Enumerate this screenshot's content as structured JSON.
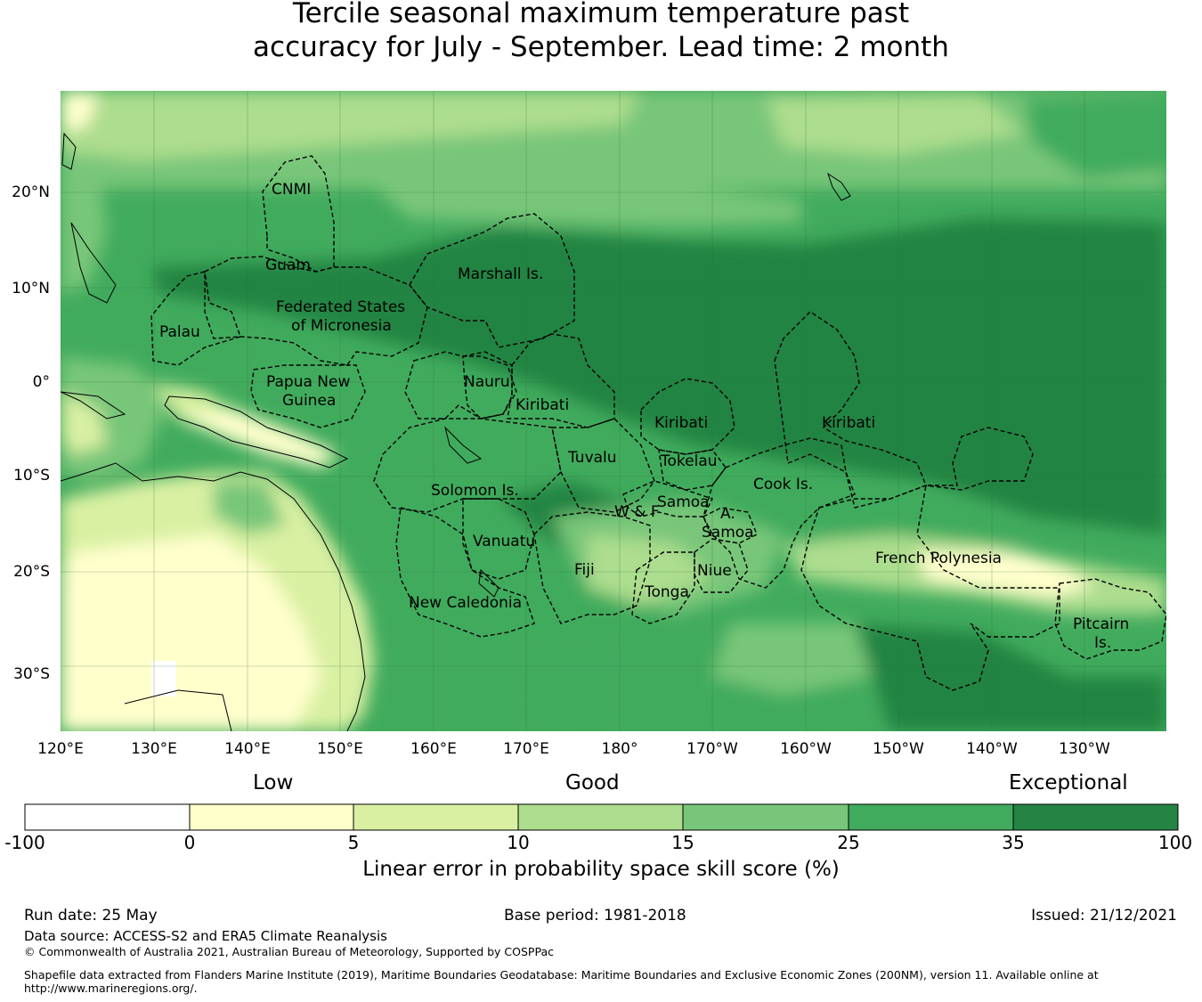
{
  "title": {
    "line1": "Tercile seasonal maximum temperature past",
    "line2": "accuracy for July - September. Lead time: 2 month"
  },
  "map": {
    "lat_labels": [
      "20°N",
      "10°N",
      "0°",
      "10°S",
      "20°S",
      "30°S"
    ],
    "lon_labels": [
      "120°E",
      "130°E",
      "140°E",
      "150°E",
      "160°E",
      "170°E",
      "180°",
      "170°W",
      "160°W",
      "150°W",
      "140°W",
      "130°W"
    ],
    "regions": [
      "CNMI",
      "Guam",
      "Marshall Is.",
      "Federated States",
      "of Micronesia",
      "Palau",
      "Papua New",
      "Guinea",
      "Nauru",
      "Kiribati",
      "Kiribati",
      "Kiribati",
      "Tuvalu",
      "Tokelau",
      "Cook Is.",
      "Solomon Is.",
      "Samoa",
      "W & F",
      "A.",
      "Samoa",
      "Vanuatu",
      "Fiji",
      "Niue",
      "Tonga",
      "French Polynesia",
      "New Caledonia",
      "Pitcairn",
      "Is."
    ],
    "colors": {
      "ocean_dark": "#238443",
      "mid_green": "#41ab5d",
      "light_green": "#78c679",
      "pale_green": "#addd8e",
      "yellow_green": "#d9f0a3",
      "pale_yellow": "#ffffcc"
    }
  },
  "colorbar": {
    "categories": [
      "Low",
      "Good",
      "Exceptional"
    ],
    "ticks": [
      "-100",
      "0",
      "5",
      "10",
      "15",
      "25",
      "35",
      "100"
    ],
    "colors": [
      "#ffffff",
      "#ffffcc",
      "#d9f0a3",
      "#addd8e",
      "#78c679",
      "#41ab5d",
      "#238443"
    ],
    "label": "Linear error in probability space skill score (%)"
  },
  "footer": {
    "run_date": "Run date: 25 May",
    "base_period": "Base period: 1981-2018",
    "issued": "Issued: 21/12/2021",
    "data_source": "Data source: ACCESS-S2 and ERA5 Climate Reanalysis",
    "copyright": "© Commonwealth of Australia 2021, Australian Bureau of Meteorology, Supported by COSPPac",
    "shapefile_line1": "Shapefile data extracted from Flanders Marine Institute (2019), Maritime Boundaries Geodatabase: Maritime Boundaries and Exclusive Economic Zones (200NM), version 11. Available online at",
    "shapefile_line2": "http://www.marineregions.org/."
  }
}
